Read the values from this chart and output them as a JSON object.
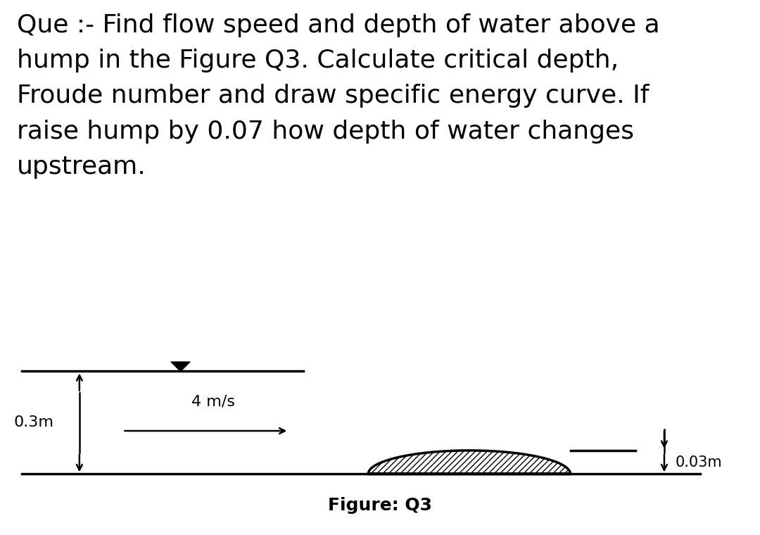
{
  "title_text": "Que :- Find flow speed and depth of water above a\nhump in the Figure Q3. Calculate critical depth,\nFroude number and draw specific energy curve. If\nraise hump by 0.07 how depth of water changes\nupstream.",
  "figure_label": "Figure: Q3",
  "depth_label": "0.3m",
  "speed_label": "4 m/s",
  "hump_label": "0.03m",
  "bg_color": "#ffffff",
  "line_color": "#000000",
  "title_fontsize": 26,
  "label_fontsize": 16,
  "figure_label_fontsize": 18
}
